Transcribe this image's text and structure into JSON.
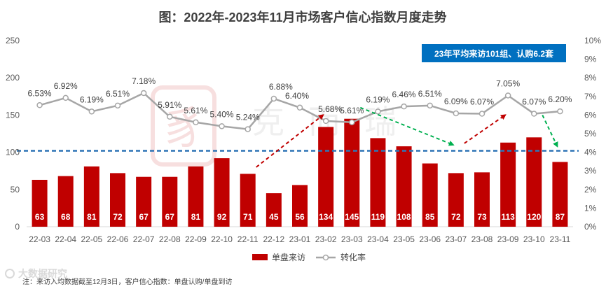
{
  "chart_data": {
    "type": "bar",
    "title": "图：2022年-2023年11月市场客户信心指数月度走势",
    "categories": [
      "22-03",
      "22-04",
      "22-05",
      "22-06",
      "22-07",
      "22-08",
      "22-09",
      "22-10",
      "22-11",
      "22-12",
      "23-01",
      "23-02",
      "23-03",
      "23-04",
      "23-05",
      "23-06",
      "23-07",
      "23-08",
      "23-09",
      "23-10",
      "23-11"
    ],
    "series": [
      {
        "name": "单盘来访",
        "type": "bar",
        "axis": "left",
        "color": "#c00000",
        "values": [
          63,
          68,
          81,
          72,
          67,
          67,
          81,
          92,
          71,
          45,
          56,
          134,
          145,
          119,
          108,
          85,
          72,
          73,
          113,
          120,
          87
        ]
      },
      {
        "name": "转化率",
        "type": "line",
        "axis": "right",
        "color": "#a6a6a6",
        "values": [
          6.53,
          6.92,
          6.19,
          6.51,
          7.18,
          5.91,
          5.61,
          5.4,
          5.24,
          6.88,
          6.4,
          5.68,
          5.61,
          6.19,
          6.46,
          6.51,
          6.09,
          6.07,
          7.05,
          6.07,
          6.2
        ],
        "labels": [
          "6.53%",
          "6.92%",
          "6.19%",
          "6.51%",
          "7.18%",
          "5.91%",
          "5.61%",
          "5.40%",
          "5.24%",
          "6.88%",
          "6.40%",
          "5.68%",
          "5.61%",
          "6.19%",
          "6.46%",
          "6.51%",
          "6.09%",
          "6.07%",
          "7.05%",
          "6.07%",
          "6.20%"
        ]
      }
    ],
    "y_left": {
      "ylim": [
        0,
        250
      ],
      "ticks": [
        "0",
        "50",
        "100",
        "150",
        "200",
        "250"
      ]
    },
    "y_right": {
      "ylim": [
        0,
        10
      ],
      "ticks": [
        "0%",
        "1%",
        "2%",
        "3%",
        "4%",
        "5%",
        "6%",
        "7%",
        "8%",
        "9%",
        "10%"
      ]
    },
    "reference_line": {
      "value": 102,
      "color": "#2e75b6",
      "style": "dashed"
    },
    "annotation": {
      "text": "23年平均来访101组、认购6.2套",
      "background": "#0070c0",
      "color": "#ffffff"
    },
    "trend_arrows": [
      {
        "from_category": "22-11",
        "from_value": 80,
        "to_category": "23-02",
        "to_value": 150,
        "color": "#c00000"
      },
      {
        "from_category": "23-03",
        "from_value": 160,
        "to_category": "23-07",
        "to_value": 110,
        "color": "#00b050"
      },
      {
        "from_category": "23-07",
        "from_value": 112,
        "to_category": "23-09",
        "to_value": 150,
        "color": "#c00000"
      },
      {
        "from_category": "23-10",
        "from_value": 150,
        "to_category": "23-11",
        "to_value": 108,
        "color": "#00b050"
      }
    ],
    "legend": [
      "单盘来访",
      "转化率"
    ],
    "legend_position": "bottom",
    "footnote": "注：来访入均数据截至12月3日，客户信心指数：单盘认购/单盘到访",
    "watermark": "克而瑞",
    "source_logo": "大数据研究"
  }
}
